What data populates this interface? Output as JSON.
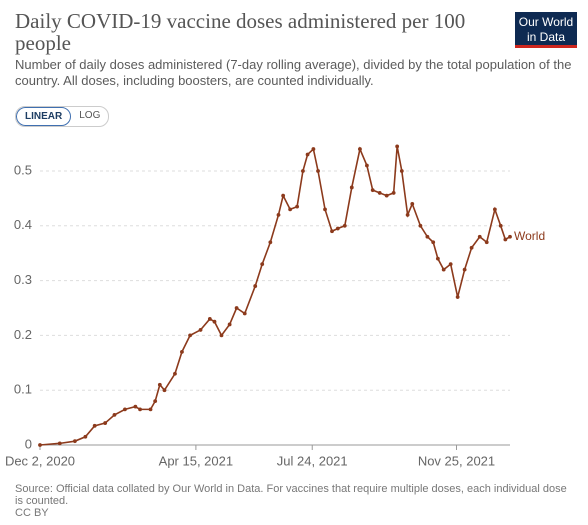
{
  "logo": "Our World in Data",
  "controls": [
    "LINEAR",
    "LOG"
  ],
  "chart_data": {
    "type": "line",
    "title": "Daily COVID-19 vaccine doses administered per 100 people",
    "subtitle": "Number of daily doses administered (7-day rolling average), divided by the total population of the country. All doses, including boosters, are counted individually.",
    "x": [
      "2020-12-02",
      "2020-12-19",
      "2021-01-01",
      "2021-01-10",
      "2021-01-18",
      "2021-01-27",
      "2021-02-04",
      "2021-02-13",
      "2021-02-22",
      "2021-02-26",
      "2021-03-07",
      "2021-03-11",
      "2021-03-15",
      "2021-03-19",
      "2021-03-28",
      "2021-04-03",
      "2021-04-10",
      "2021-04-19",
      "2021-04-27",
      "2021-05-01",
      "2021-05-07",
      "2021-05-14",
      "2021-05-20",
      "2021-05-27",
      "2021-06-05",
      "2021-06-11",
      "2021-06-18",
      "2021-06-25",
      "2021-06-29",
      "2021-07-05",
      "2021-07-11",
      "2021-07-16",
      "2021-07-20",
      "2021-07-25",
      "2021-07-29",
      "2021-08-04",
      "2021-08-10",
      "2021-08-15",
      "2021-08-21",
      "2021-08-27",
      "2021-09-03",
      "2021-09-09",
      "2021-09-14",
      "2021-09-20",
      "2021-09-26",
      "2021-10-02",
      "2021-10-05",
      "2021-10-09",
      "2021-10-14",
      "2021-10-18",
      "2021-10-25",
      "2021-10-31",
      "2021-11-05",
      "2021-11-09",
      "2021-11-14",
      "2021-11-20",
      "2021-11-26",
      "2021-12-02",
      "2021-12-08",
      "2021-12-15",
      "2021-12-21",
      "2021-12-28",
      "2022-01-02",
      "2022-01-06",
      "2022-01-10"
    ],
    "series": [
      {
        "name": "World",
        "color": "#8c3a1c",
        "values": [
          0,
          0.003,
          0.007,
          0.015,
          0.035,
          0.04,
          0.055,
          0.065,
          0.07,
          0.065,
          0.065,
          0.08,
          0.11,
          0.1,
          0.13,
          0.17,
          0.2,
          0.21,
          0.23,
          0.225,
          0.2,
          0.22,
          0.25,
          0.24,
          0.29,
          0.33,
          0.37,
          0.42,
          0.455,
          0.43,
          0.435,
          0.5,
          0.53,
          0.54,
          0.5,
          0.43,
          0.39,
          0.395,
          0.4,
          0.47,
          0.54,
          0.51,
          0.465,
          0.46,
          0.455,
          0.46,
          0.545,
          0.5,
          0.42,
          0.44,
          0.4,
          0.38,
          0.37,
          0.34,
          0.32,
          0.33,
          0.27,
          0.32,
          0.36,
          0.38,
          0.37,
          0.43,
          0.4,
          0.375,
          0.38
        ]
      }
    ],
    "xlim": [
      "2020-12-02",
      "2022-01-10"
    ],
    "xticks": [
      {
        "value": "2020-12-02",
        "label": "Dec 2, 2020"
      },
      {
        "value": "2021-04-15",
        "label": "Apr 15, 2021"
      },
      {
        "value": "2021-07-24",
        "label": "Jul 24, 2021"
      },
      {
        "value": "2021-11-25",
        "label": "Nov 25, 2021"
      }
    ],
    "ylim": [
      0,
      0.55
    ],
    "yticks": [
      0,
      0.1,
      0.2,
      0.3,
      0.4,
      0.5
    ],
    "grid": true,
    "source": "Source: Official data collated by Our World in Data. For vaccines that require multiple doses, each individual dose is counted.",
    "license": "CC BY"
  }
}
